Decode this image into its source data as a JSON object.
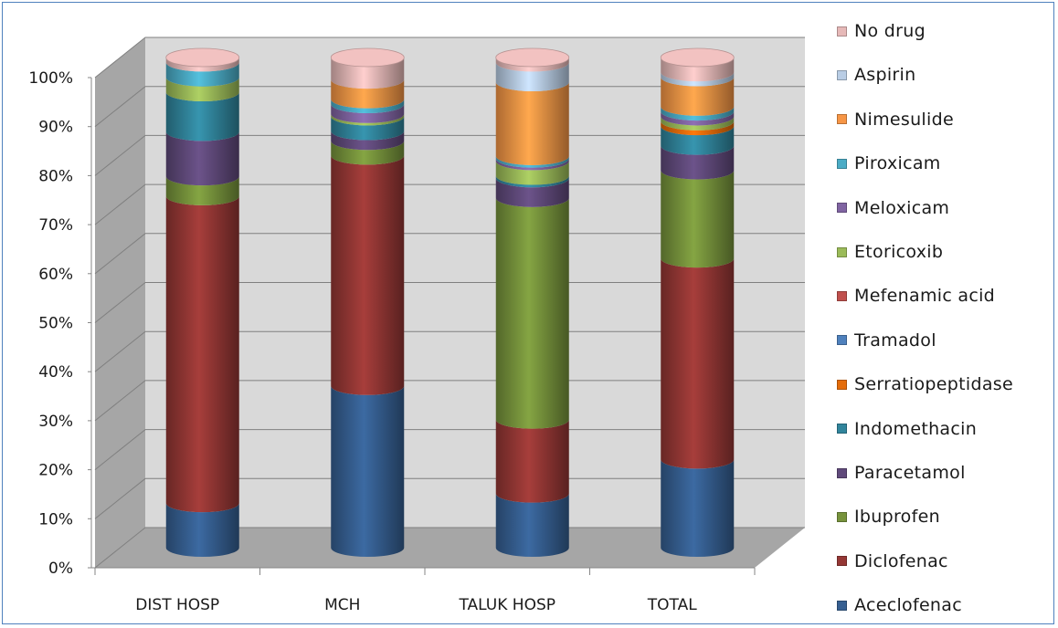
{
  "chart_data": {
    "type": "bar",
    "stacked": true,
    "percent_stacked": true,
    "style": "3d-cylinder",
    "title": "",
    "xlabel": "",
    "ylabel": "",
    "ylim": [
      0,
      100
    ],
    "y_ticks": [
      "0%",
      "10%",
      "20%",
      "30%",
      "40%",
      "50%",
      "60%",
      "70%",
      "80%",
      "90%",
      "100%"
    ],
    "grid": true,
    "legend_position": "right",
    "categories": [
      "DIST HOSP",
      "MCH",
      "TALUK HOSP",
      "TOTAL"
    ],
    "series": [
      {
        "name": "Aceclofenac",
        "color": "#4f81bd",
        "values": [
          9,
          33,
          11,
          18
        ]
      },
      {
        "name": "Diclofenac",
        "color": "#c0504d",
        "values": [
          62,
          47,
          15,
          41
        ]
      },
      {
        "name": "Ibuprofen",
        "color": "#9bbb59",
        "values": [
          4,
          3,
          45,
          18
        ]
      },
      {
        "name": "Paracetamol",
        "color": "#8064a2",
        "values": [
          9,
          2,
          4,
          5
        ]
      },
      {
        "name": "Indomethacin",
        "color": "#4bacc6",
        "values": [
          8,
          3,
          0.5,
          4
        ]
      },
      {
        "name": "Serratiopeptidase",
        "color": "#f79646",
        "values": [
          0,
          0,
          0,
          1
        ]
      },
      {
        "name": "Tramadol",
        "color": "#2c4d75",
        "values": [
          0,
          0,
          0,
          0
        ]
      },
      {
        "name": "Mefenamic acid",
        "color": "#772c2a",
        "values": [
          0,
          0,
          0,
          0
        ]
      },
      {
        "name": "Etoricoxib",
        "color": "#5f7530",
        "values": [
          3,
          0.5,
          3,
          1
        ]
      },
      {
        "name": "Meloxicam",
        "color": "#4d3b62",
        "values": [
          0,
          2,
          0.5,
          1
        ]
      },
      {
        "name": "Piroxicam",
        "color": "#276a7c",
        "values": [
          3,
          1,
          0.5,
          1
        ]
      },
      {
        "name": "Nimesulide",
        "color": "#b65708",
        "values": [
          0,
          4,
          15,
          6
        ]
      },
      {
        "name": "Aspirin",
        "color": "#95b3d7",
        "values": [
          0,
          0,
          4,
          1
        ]
      },
      {
        "name": "No drug",
        "color": "#d99694",
        "values": [
          1,
          4.5,
          1,
          3
        ]
      }
    ]
  },
  "legend": {
    "items": [
      {
        "label": "No drug",
        "color": "#e6b9b8"
      },
      {
        "label": "Aspirin",
        "color": "#b9cde5"
      },
      {
        "label": "Nimesulide",
        "color": "#f79646"
      },
      {
        "label": "Piroxicam",
        "color": "#4bacc6"
      },
      {
        "label": "Meloxicam",
        "color": "#8064a2"
      },
      {
        "label": "Etoricoxib",
        "color": "#9bbb59"
      },
      {
        "label": "Mefenamic acid",
        "color": "#c0504d"
      },
      {
        "label": "Tramadol",
        "color": "#4f81bd"
      },
      {
        "label": "Serratiopeptidase",
        "color": "#e46c0a"
      },
      {
        "label": "Indomethacin",
        "color": "#31859c"
      },
      {
        "label": "Paracetamol",
        "color": "#604a7b"
      },
      {
        "label": "Ibuprofen",
        "color": "#77933c"
      },
      {
        "label": "Diclofenac",
        "color": "#953735"
      },
      {
        "label": "Aceclofenac",
        "color": "#365f91"
      }
    ]
  }
}
